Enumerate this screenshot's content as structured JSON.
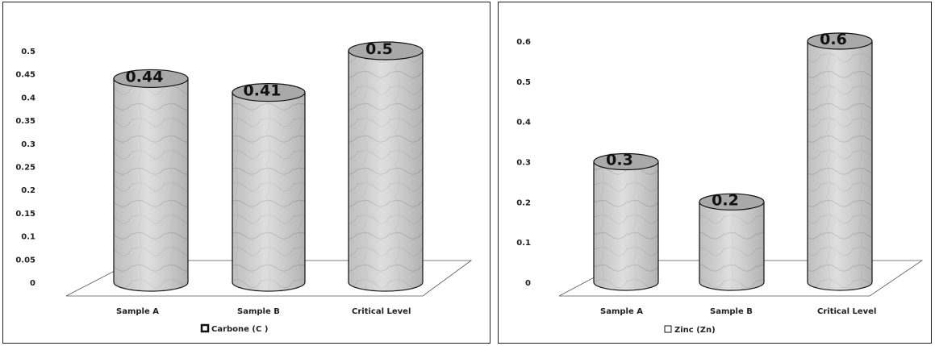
{
  "chart_data": [
    {
      "type": "bar",
      "style": "3d-cylinder",
      "categories": [
        "Sample A",
        "Sample B",
        "Critical Level"
      ],
      "series": [
        {
          "name": "Carbone  (C )",
          "values": [
            0.44,
            0.41,
            0.5
          ]
        }
      ],
      "data_labels": [
        "0.44",
        "0.41",
        "0.5"
      ],
      "y_ticks": [
        "0",
        "0.05",
        "0.1",
        "0.15",
        "0.2",
        "0.25",
        "0.3",
        "0.35",
        "0.4",
        "0.45",
        "0.5"
      ],
      "ylim": [
        0,
        0.5
      ],
      "legend": "bottom",
      "grid": false
    },
    {
      "type": "bar",
      "style": "3d-cylinder",
      "categories": [
        "Sample A",
        "Sample B",
        "Critical Level"
      ],
      "series": [
        {
          "name": "Zinc (Zn)",
          "values": [
            0.3,
            0.2,
            0.6
          ]
        }
      ],
      "data_labels": [
        "0.3",
        "0.2",
        "0.6"
      ],
      "y_ticks": [
        "0",
        "0.1",
        "0.2",
        "0.3",
        "0.4",
        "0.5",
        "0.6"
      ],
      "ylim": [
        0,
        0.6
      ],
      "legend": "bottom",
      "grid": false
    }
  ],
  "colors": {
    "bar_fill": "#d9d9d9",
    "bar_top": "#a9a9a9",
    "outline": "#111111",
    "frame": "#222222"
  }
}
